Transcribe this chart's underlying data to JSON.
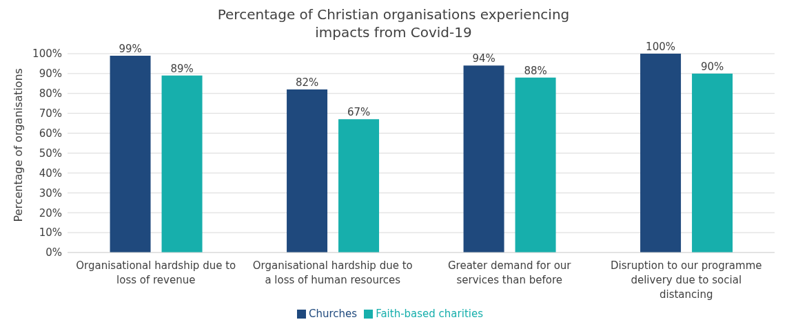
{
  "chart_data": {
    "type": "bar",
    "title": "Percentage of Christian organisations experiencing impacts from Covid-19",
    "ylabel": "Percentage of organisations",
    "categories": [
      "Organisational hardship due to loss of revenue",
      "Organisational hardship due to a loss of human resources",
      "Greater demand for our services than before",
      "Disruption to our programme delivery due to social distancing"
    ],
    "series": [
      {
        "name": "Churches",
        "color": "#1f497d",
        "values": [
          99,
          82,
          94,
          100
        ],
        "value_labels": [
          "99%",
          "82%",
          "94%",
          "100%"
        ]
      },
      {
        "name": "Faith-based charities",
        "color": "#17afac",
        "values": [
          89,
          67,
          88,
          90
        ],
        "value_labels": [
          "89%",
          "67%",
          "88%",
          "90%"
        ]
      }
    ],
    "ylim": [
      0,
      100
    ],
    "yticks": [
      {
        "value": 0,
        "label": "0%"
      },
      {
        "value": 10,
        "label": "10%"
      },
      {
        "value": 20,
        "label": "20%"
      },
      {
        "value": 30,
        "label": "30%"
      },
      {
        "value": 40,
        "label": "40%"
      },
      {
        "value": 50,
        "label": "50%"
      },
      {
        "value": 60,
        "label": "60%"
      },
      {
        "value": 70,
        "label": "70%"
      },
      {
        "value": 80,
        "label": "80%"
      },
      {
        "value": 90,
        "label": "90%"
      },
      {
        "value": 100,
        "label": "100%"
      }
    ],
    "grid": "y",
    "legend": "bottom"
  }
}
